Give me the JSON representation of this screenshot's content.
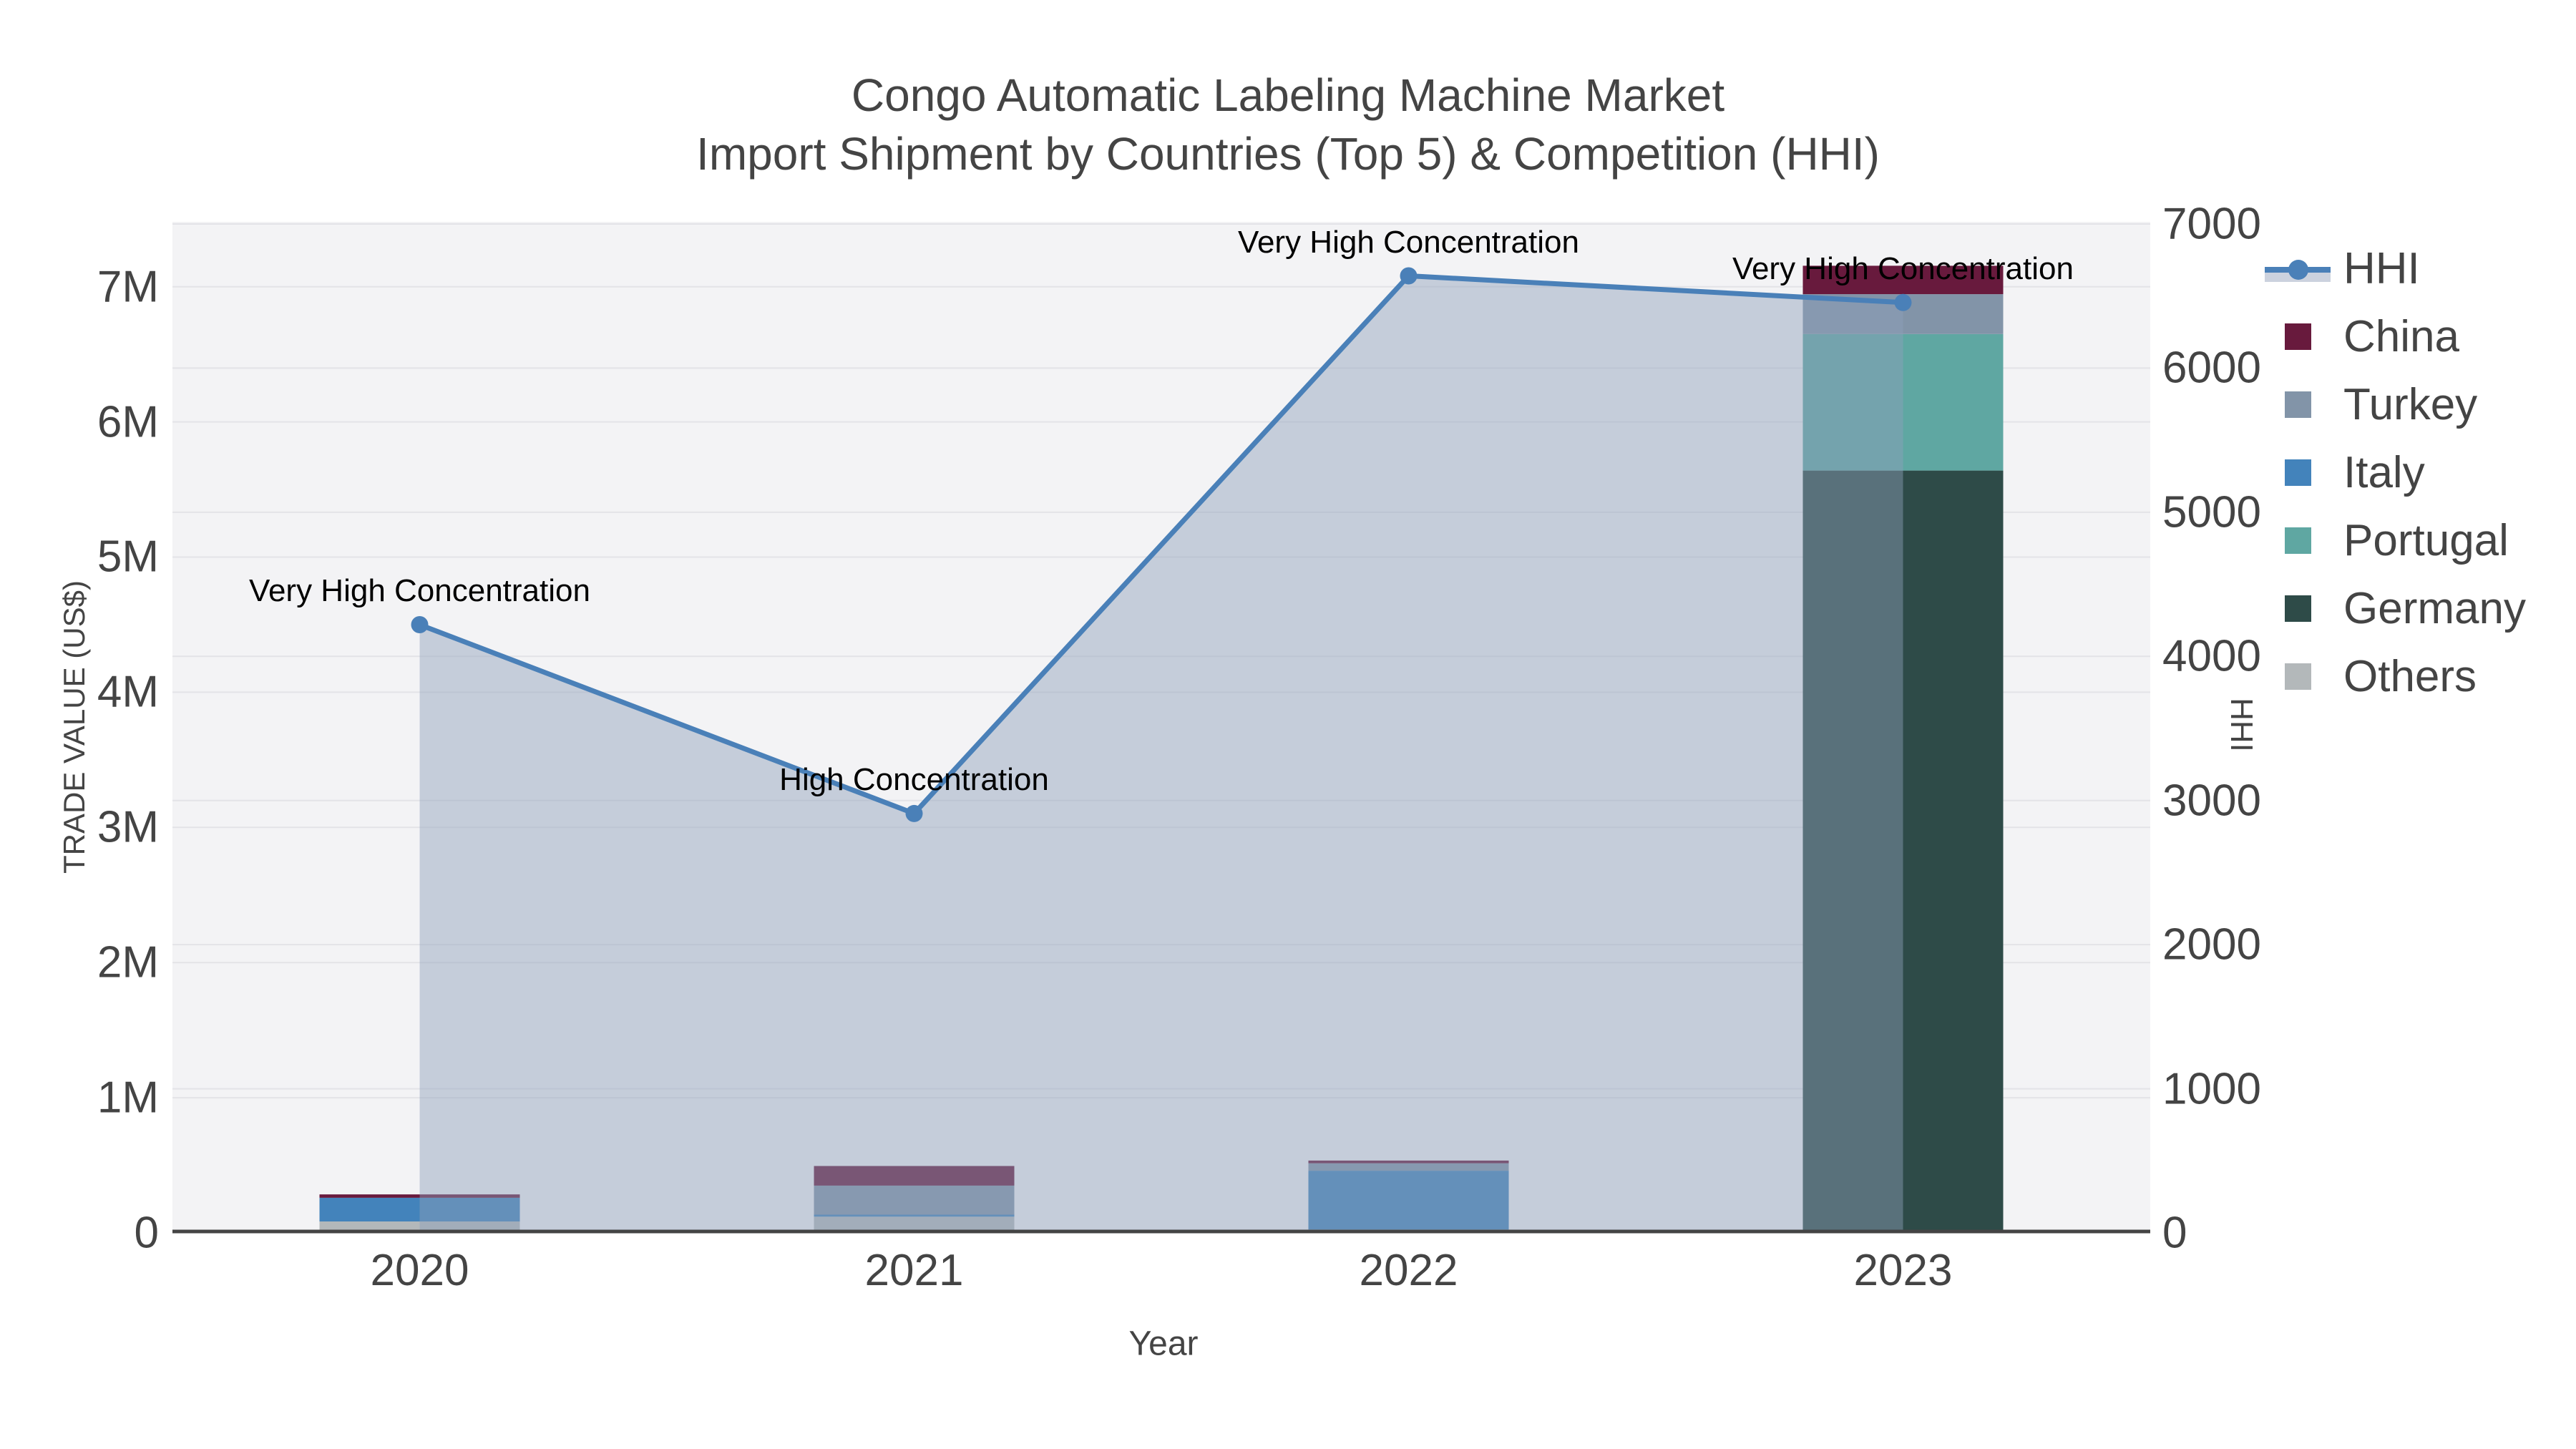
{
  "title": {
    "line1": "Congo Automatic Labeling Machine Market",
    "line2": "Import Shipment by Countries (Top 5) & Competition (HHI)"
  },
  "axes": {
    "x_title": "Year",
    "y_left_title": "TRADE VALUE (US$)",
    "y_right_title": "HHI",
    "y_left_ticks": [
      "0",
      "1M",
      "2M",
      "3M",
      "4M",
      "5M",
      "6M",
      "7M"
    ],
    "y_right_ticks": [
      "0",
      "1000",
      "2000",
      "3000",
      "4000",
      "5000",
      "6000",
      "7000"
    ]
  },
  "chart_data": {
    "type": "combo-stacked-bar-and-line",
    "categories": [
      "2020",
      "2021",
      "2022",
      "2023"
    ],
    "bar_value_unit": "US$ trade value",
    "series": [
      {
        "name": "Others",
        "color": "#b3b8ba",
        "values": [
          85000,
          120000,
          25000,
          0
        ]
      },
      {
        "name": "Germany",
        "color": "#2e4b48",
        "values": [
          0,
          0,
          0,
          5640000
        ]
      },
      {
        "name": "Portugal",
        "color": "#5fa7a2",
        "values": [
          0,
          0,
          0,
          1010000
        ]
      },
      {
        "name": "Italy",
        "color": "#4383bb",
        "values": [
          175000,
          15000,
          435000,
          0
        ]
      },
      {
        "name": "Turkey",
        "color": "#8294a8",
        "values": [
          0,
          215000,
          55000,
          295000
        ]
      },
      {
        "name": "China",
        "color": "#681a3d",
        "values": [
          25000,
          145000,
          20000,
          210000
        ]
      }
    ],
    "line": {
      "name": "HHI",
      "axis": "right",
      "color": "#4a80b8",
      "fill": "rgba(143,159,186,0.45)",
      "values": [
        4220,
        2910,
        6640,
        6455
      ]
    },
    "annotations": [
      "Very High Concentration",
      "High Concentration",
      "Very High Concentration",
      "Very High Concentration"
    ],
    "y_left_range": [
      0,
      7480000
    ],
    "y_right_range": [
      0,
      7015
    ],
    "grid": true,
    "legend_position": "right"
  },
  "legend": {
    "items": [
      {
        "label": "HHI",
        "type": "line",
        "color": "#4a80b8"
      },
      {
        "label": "China",
        "type": "swatch",
        "color": "#681a3d"
      },
      {
        "label": "Turkey",
        "type": "swatch",
        "color": "#8294a8"
      },
      {
        "label": "Italy",
        "type": "swatch",
        "color": "#4383bb"
      },
      {
        "label": "Portugal",
        "type": "swatch",
        "color": "#5fa7a2"
      },
      {
        "label": "Germany",
        "type": "swatch",
        "color": "#2e4b48"
      },
      {
        "label": "Others",
        "type": "swatch",
        "color": "#b3b8ba"
      }
    ]
  },
  "colors": {
    "plot_background": "#f3f3f5",
    "page_background": "#ffffff",
    "gridline": "#e3e3e7",
    "axis_line": "#444444",
    "text": "#444444",
    "annotation_text": "#000000"
  }
}
